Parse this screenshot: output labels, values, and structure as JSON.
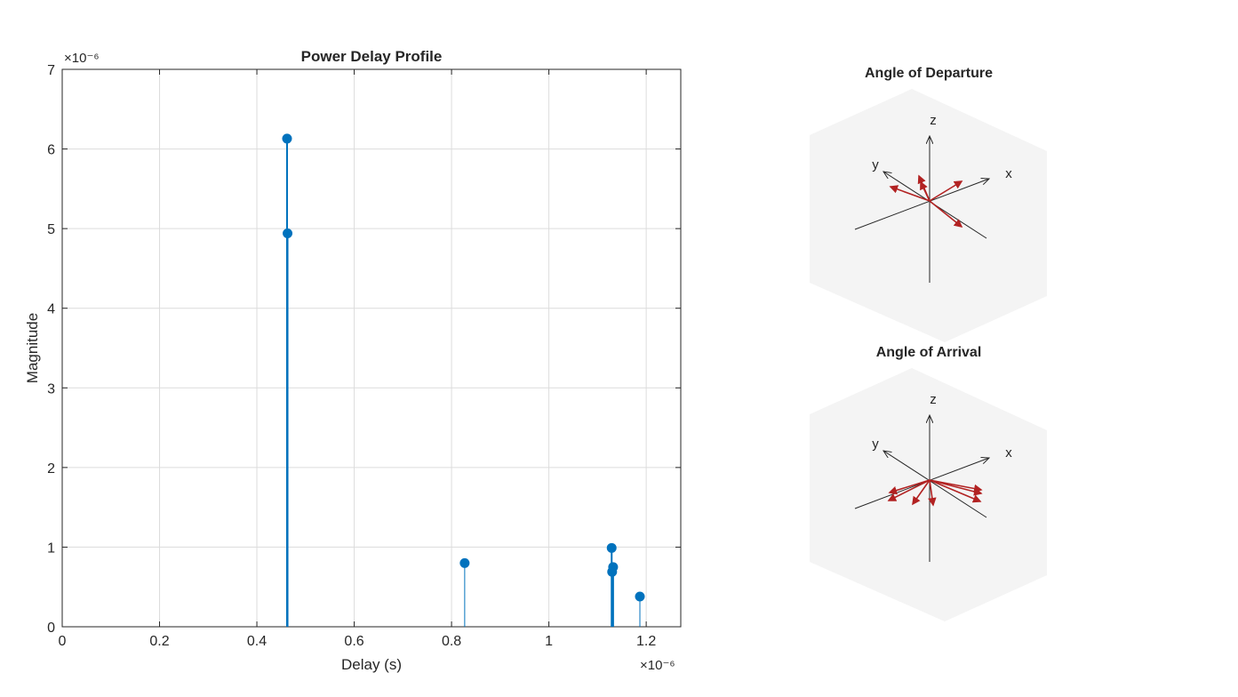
{
  "chart_data": [
    {
      "type": "stem",
      "title": "Power Delay Profile",
      "xlabel": "Delay (s)",
      "ylabel": "Magnitude",
      "x_exponent": "×10⁻⁶",
      "y_exponent": "×10⁻⁶",
      "xlim": [
        0,
        1.271
      ],
      "ylim": [
        0,
        7
      ],
      "xticks": [
        "0",
        "0.2",
        "0.4",
        "0.6",
        "0.8",
        "1",
        "1.2"
      ],
      "yticks": [
        "0",
        "1",
        "2",
        "3",
        "4",
        "5",
        "6",
        "7"
      ],
      "grid": true,
      "color": "#0072BD",
      "points": [
        {
          "x": 0.462,
          "y": 6.13
        },
        {
          "x": 0.463,
          "y": 4.94
        },
        {
          "x": 0.827,
          "y": 0.8
        },
        {
          "x": 1.129,
          "y": 0.99
        },
        {
          "x": 1.132,
          "y": 0.75
        },
        {
          "x": 1.13,
          "y": 0.69
        },
        {
          "x": 1.187,
          "y": 0.38
        }
      ]
    },
    {
      "type": "3d-quiver",
      "title": "Angle of Departure",
      "axis_labels": [
        "x",
        "y",
        "z"
      ],
      "arrow_color": "#B22222"
    },
    {
      "type": "3d-quiver",
      "title": "Angle of Arrival",
      "axis_labels": [
        "x",
        "y",
        "z"
      ],
      "arrow_color": "#B22222"
    }
  ]
}
